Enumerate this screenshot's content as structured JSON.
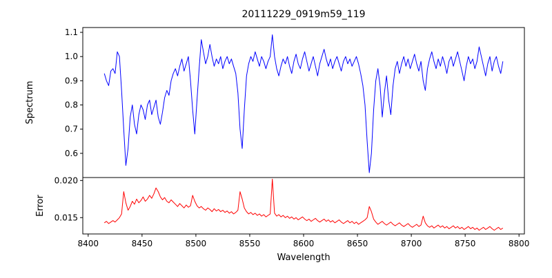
{
  "title": "20111229_0919m59_119",
  "axes": {
    "xlabel": "Wavelength",
    "spectrum_ylabel": "Spectrum",
    "error_ylabel": "Error"
  },
  "colors": {
    "spectrum_line": "#0000ff",
    "error_line": "#ff0000",
    "frame": "#000000",
    "background": "#ffffff"
  },
  "chart_data": {
    "type": "line",
    "title": "20111229_0919m59_119",
    "xlabel": "Wavelength",
    "x_start": 8415,
    "x_step": 2,
    "xlim": [
      8395,
      8805
    ],
    "x_ticks": [
      8400,
      8450,
      8500,
      8550,
      8600,
      8650,
      8700,
      8750,
      8800
    ],
    "x_tick_labels": [
      "8400",
      "8450",
      "8500",
      "8550",
      "8600",
      "8650",
      "8700",
      "8750",
      "8800"
    ],
    "grid": false,
    "legend": "none",
    "panels": [
      {
        "name": "spectrum",
        "ylabel": "Spectrum",
        "ylim": [
          0.5,
          1.12
        ],
        "y_ticks": [
          0.6,
          0.7,
          0.8,
          0.9,
          1.0,
          1.1
        ],
        "y_tick_labels": [
          "0.6",
          "0.7",
          "0.8",
          "0.9",
          "1.0",
          "1.1"
        ],
        "series": [
          {
            "name": "spectrum",
            "color": "#0000ff",
            "values": [
              0.93,
              0.9,
              0.88,
              0.94,
              0.95,
              0.93,
              1.02,
              1.0,
              0.86,
              0.7,
              0.55,
              0.62,
              0.75,
              0.8,
              0.72,
              0.68,
              0.76,
              0.8,
              0.78,
              0.74,
              0.8,
              0.82,
              0.76,
              0.79,
              0.82,
              0.75,
              0.72,
              0.77,
              0.83,
              0.86,
              0.84,
              0.9,
              0.93,
              0.95,
              0.92,
              0.96,
              0.99,
              0.94,
              0.97,
              1.0,
              0.9,
              0.78,
              0.68,
              0.82,
              0.95,
              1.07,
              1.02,
              0.97,
              1.0,
              1.05,
              1.0,
              0.96,
              0.99,
              0.97,
              1.0,
              0.95,
              0.98,
              1.0,
              0.97,
              0.99,
              0.96,
              0.93,
              0.85,
              0.7,
              0.62,
              0.78,
              0.92,
              0.97,
              1.0,
              0.98,
              1.02,
              0.99,
              0.96,
              1.0,
              0.98,
              0.95,
              0.98,
              1.0,
              1.09,
              1.0,
              0.95,
              0.92,
              0.96,
              0.99,
              0.97,
              1.0,
              0.96,
              0.93,
              0.98,
              1.01,
              0.97,
              0.95,
              0.99,
              1.02,
              0.98,
              0.94,
              0.97,
              1.0,
              0.96,
              0.92,
              0.97,
              1.0,
              1.03,
              0.99,
              0.96,
              0.99,
              0.95,
              0.98,
              1.0,
              0.97,
              0.94,
              0.98,
              1.0,
              0.97,
              0.99,
              0.96,
              0.98,
              1.0,
              0.97,
              0.93,
              0.88,
              0.8,
              0.65,
              0.52,
              0.6,
              0.78,
              0.9,
              0.95,
              0.88,
              0.75,
              0.85,
              0.92,
              0.82,
              0.76,
              0.88,
              0.95,
              0.98,
              0.93,
              0.97,
              1.0,
              0.96,
              0.99,
              0.95,
              0.98,
              1.01,
              0.97,
              0.94,
              0.98,
              0.9,
              0.86,
              0.95,
              0.99,
              1.02,
              0.98,
              0.95,
              0.99,
              0.96,
              1.0,
              0.97,
              0.93,
              0.98,
              1.0,
              0.96,
              0.99,
              1.02,
              0.98,
              0.94,
              0.9,
              0.96,
              1.0,
              0.97,
              0.99,
              0.95,
              0.98,
              1.04,
              1.0,
              0.96,
              0.92,
              0.97,
              1.0,
              0.94,
              0.98,
              1.0,
              0.96,
              0.93,
              0.98
            ]
          }
        ]
      },
      {
        "name": "error",
        "ylabel": "Error",
        "ylim": [
          0.0128,
          0.0204
        ],
        "y_ticks": [
          0.015,
          0.02
        ],
        "y_tick_labels": [
          "0.015",
          "0.020"
        ],
        "series": [
          {
            "name": "error",
            "color": "#ff0000",
            "values": [
              0.0143,
              0.0145,
              0.0142,
              0.0144,
              0.0146,
              0.0144,
              0.0147,
              0.015,
              0.0155,
              0.0185,
              0.017,
              0.016,
              0.0165,
              0.0172,
              0.0168,
              0.0175,
              0.017,
              0.0173,
              0.0178,
              0.0172,
              0.0175,
              0.018,
              0.0176,
              0.0182,
              0.019,
              0.0185,
              0.0178,
              0.0174,
              0.0177,
              0.0172,
              0.017,
              0.0174,
              0.0171,
              0.0168,
              0.0165,
              0.0169,
              0.0166,
              0.0163,
              0.0167,
              0.0164,
              0.0166,
              0.018,
              0.0172,
              0.0166,
              0.0163,
              0.0165,
              0.0162,
              0.016,
              0.0163,
              0.0161,
              0.0158,
              0.0162,
              0.0159,
              0.0161,
              0.0158,
              0.016,
              0.0157,
              0.0159,
              0.0156,
              0.0158,
              0.0155,
              0.0157,
              0.016,
              0.0185,
              0.0175,
              0.0163,
              0.0158,
              0.0155,
              0.0157,
              0.0154,
              0.0156,
              0.0153,
              0.0155,
              0.0152,
              0.0154,
              0.0151,
              0.0153,
              0.0155,
              0.0202,
              0.0156,
              0.0152,
              0.0154,
              0.0151,
              0.0153,
              0.015,
              0.0152,
              0.0149,
              0.0151,
              0.0148,
              0.015,
              0.0147,
              0.0149,
              0.0151,
              0.0148,
              0.0146,
              0.0148,
              0.0145,
              0.0147,
              0.0149,
              0.0146,
              0.0144,
              0.0146,
              0.0148,
              0.0145,
              0.0147,
              0.0144,
              0.0146,
              0.0143,
              0.0145,
              0.0147,
              0.0144,
              0.0142,
              0.0144,
              0.0146,
              0.0143,
              0.0145,
              0.0142,
              0.0144,
              0.0141,
              0.0143,
              0.0145,
              0.0147,
              0.015,
              0.0165,
              0.0158,
              0.0148,
              0.0144,
              0.0141,
              0.0143,
              0.0145,
              0.0142,
              0.014,
              0.0142,
              0.0144,
              0.0141,
              0.0139,
              0.0141,
              0.0143,
              0.014,
              0.0138,
              0.014,
              0.0142,
              0.0139,
              0.0137,
              0.0139,
              0.0141,
              0.0138,
              0.014,
              0.0152,
              0.0143,
              0.0139,
              0.0137,
              0.0139,
              0.0136,
              0.0138,
              0.014,
              0.0137,
              0.0139,
              0.0136,
              0.0138,
              0.0135,
              0.0137,
              0.0139,
              0.0136,
              0.0138,
              0.0135,
              0.0137,
              0.0134,
              0.0136,
              0.0138,
              0.0135,
              0.0137,
              0.0134,
              0.0136,
              0.0133,
              0.0135,
              0.0137,
              0.0134,
              0.0136,
              0.0138,
              0.0135,
              0.0133,
              0.0135,
              0.0137,
              0.0134,
              0.0136
            ]
          }
        ]
      }
    ]
  }
}
